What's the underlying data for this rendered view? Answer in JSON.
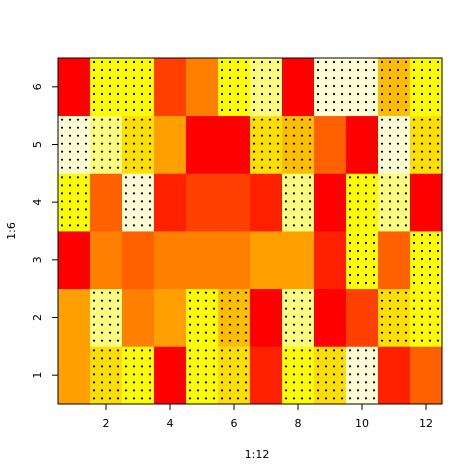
{
  "chart_data": {
    "type": "heatmap",
    "xlabel": "1:12",
    "ylabel": "1:6",
    "x": [
      1,
      2,
      3,
      4,
      5,
      6,
      7,
      8,
      9,
      10,
      11,
      12
    ],
    "y": [
      1,
      2,
      3,
      4,
      5,
      6
    ],
    "xlim": [
      0.5,
      12.5
    ],
    "ylim": [
      0.5,
      6.5
    ],
    "xticks": [
      2,
      4,
      6,
      8,
      10,
      12
    ],
    "yticks": [
      1,
      2,
      3,
      4,
      5,
      6
    ],
    "colors": [
      "#FF0000",
      "#FF2000",
      "#FF4000",
      "#FF6000",
      "#FF8000",
      "#FF9F00",
      "#FFBF00",
      "#FFDF00",
      "#FFFF00",
      "#FFFF2A",
      "#FFFF80",
      "#FFFFD5"
    ],
    "z": [
      [
        5,
        7,
        8,
        0,
        8,
        7,
        1,
        8,
        7,
        11,
        1,
        3
      ],
      [
        5,
        10,
        4,
        5,
        8,
        6,
        0,
        10,
        0,
        2,
        7,
        8
      ],
      [
        0,
        4,
        3,
        4,
        4,
        4,
        5,
        5,
        1,
        8,
        3,
        8
      ],
      [
        8,
        3,
        11,
        1,
        2,
        2,
        1,
        10,
        0,
        8,
        10,
        0
      ],
      [
        11,
        10,
        7,
        5,
        0,
        0,
        7,
        6,
        3,
        0,
        11,
        7
      ],
      [
        0,
        8,
        8,
        2,
        4,
        8,
        10,
        0,
        11,
        11,
        6,
        8
      ]
    ],
    "dots": [
      [
        0,
        1,
        1,
        0,
        1,
        1,
        0,
        1,
        1,
        1,
        0,
        0
      ],
      [
        0,
        1,
        0,
        0,
        1,
        1,
        0,
        1,
        0,
        0,
        1,
        1
      ],
      [
        0,
        0,
        0,
        0,
        0,
        0,
        0,
        0,
        0,
        1,
        0,
        1
      ],
      [
        1,
        0,
        1,
        0,
        0,
        0,
        0,
        1,
        0,
        1,
        1,
        0
      ],
      [
        1,
        1,
        1,
        0,
        0,
        0,
        1,
        1,
        0,
        0,
        1,
        1
      ],
      [
        0,
        1,
        1,
        0,
        0,
        1,
        1,
        0,
        1,
        1,
        1,
        1
      ]
    ]
  }
}
